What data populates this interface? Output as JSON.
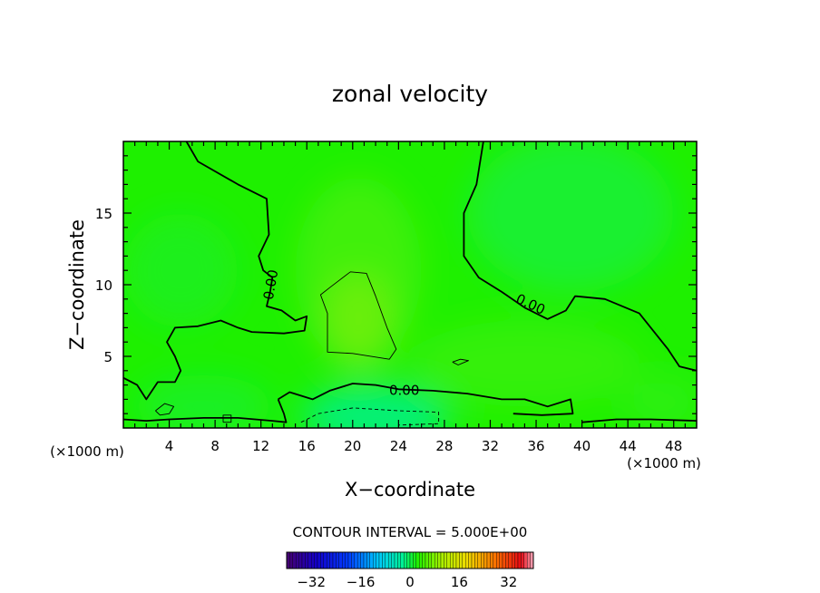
{
  "chart_data": {
    "type": "heatmap",
    "title": "zonal velocity",
    "xlabel": "X−coordinate",
    "ylabel": "Z−coordinate",
    "x_unit_left": "(×1000 m)",
    "x_unit_right": "(×1000 m)",
    "xlim": [
      0,
      50
    ],
    "ylim": [
      0,
      20
    ],
    "x_ticks": [
      4,
      8,
      12,
      16,
      20,
      24,
      28,
      32,
      36,
      40,
      44,
      48
    ],
    "x_tick_labels": [
      "4",
      "8",
      "12",
      "16",
      "20",
      "24",
      "28",
      "32",
      "36",
      "40",
      "44",
      "48"
    ],
    "y_ticks": [
      5,
      10,
      15
    ],
    "y_tick_labels": [
      "5",
      "10",
      "15"
    ],
    "contour_interval_label": "CONTOUR INTERVAL = 5.000E+00",
    "colorbar": {
      "range": [
        -40,
        40
      ],
      "ticks": [
        -32,
        -16,
        0,
        16,
        32
      ],
      "tick_labels": [
        "−32",
        "−16",
        "0",
        "16",
        "32"
      ]
    },
    "contour_labels": [
      {
        "text": "0.00",
        "x": 12.9,
        "z": 10.0,
        "angle": -80
      },
      {
        "text": "0.00",
        "x": 35.5,
        "z": 8.6,
        "angle": 25
      },
      {
        "text": "0.00",
        "x": 24.5,
        "z": 2.6,
        "angle": 0
      }
    ],
    "zero_contours": [
      [
        [
          5.5,
          20.0
        ],
        [
          6.5,
          18.6
        ],
        [
          10.0,
          17.0
        ],
        [
          12.5,
          16.0
        ],
        [
          12.7,
          13.5
        ],
        [
          11.8,
          12.0
        ],
        [
          12.2,
          11.0
        ],
        [
          13.0,
          10.5
        ],
        [
          12.8,
          9.5
        ],
        [
          12.5,
          8.5
        ],
        [
          13.8,
          8.2
        ],
        [
          15.0,
          7.5
        ],
        [
          16.0,
          7.8
        ],
        [
          15.8,
          6.8
        ],
        [
          14.0,
          6.6
        ],
        [
          11.2,
          6.7
        ],
        [
          10.0,
          7.0
        ],
        [
          8.5,
          7.5
        ],
        [
          6.5,
          7.1
        ],
        [
          4.5,
          7.0
        ],
        [
          3.8,
          6.0
        ],
        [
          4.5,
          5.0
        ],
        [
          5.0,
          4.0
        ],
        [
          4.5,
          3.2
        ],
        [
          3.0,
          3.2
        ],
        [
          2.0,
          2.0
        ],
        [
          1.2,
          3.0
        ],
        [
          0,
          3.5
        ]
      ],
      [
        [
          31.4,
          20.0
        ],
        [
          30.8,
          17.0
        ],
        [
          29.7,
          15.0
        ],
        [
          29.7,
          12.0
        ],
        [
          31.0,
          10.5
        ],
        [
          33.0,
          9.5
        ],
        [
          35.0,
          8.4
        ],
        [
          37.0,
          7.6
        ],
        [
          38.6,
          8.2
        ],
        [
          39.4,
          9.2
        ],
        [
          42.0,
          9.0
        ],
        [
          45.0,
          8.0
        ],
        [
          47.5,
          5.5
        ],
        [
          48.5,
          4.3
        ],
        [
          50.0,
          4.0
        ]
      ],
      [
        [
          13.5,
          2.0
        ],
        [
          14.5,
          2.5
        ],
        [
          16.5,
          2.0
        ],
        [
          18.0,
          2.6
        ],
        [
          20.0,
          3.1
        ],
        [
          22.0,
          3.0
        ],
        [
          24.0,
          2.7
        ],
        [
          27.0,
          2.6
        ],
        [
          30.0,
          2.4
        ],
        [
          33.0,
          2.0
        ],
        [
          35.0,
          2.0
        ],
        [
          37.0,
          1.5
        ],
        [
          39.0,
          2.0
        ],
        [
          39.2,
          1.0
        ],
        [
          36.5,
          0.9
        ],
        [
          34.0,
          1.0
        ]
      ],
      [
        [
          13.5,
          2.0
        ],
        [
          14.0,
          1.0
        ],
        [
          14.2,
          0.4
        ],
        [
          13.0,
          0.5
        ],
        [
          10.0,
          0.7
        ],
        [
          7.0,
          0.7
        ],
        [
          4.0,
          0.6
        ],
        [
          2.0,
          0.5
        ],
        [
          0,
          0.6
        ]
      ],
      [
        [
          40.0,
          0.4
        ],
        [
          43.0,
          0.6
        ],
        [
          46.0,
          0.6
        ],
        [
          50.0,
          0.5
        ]
      ]
    ],
    "positive_contours": [
      [
        [
          18.0,
          9.8
        ],
        [
          19.8,
          10.9
        ],
        [
          21.2,
          10.8
        ],
        [
          22.0,
          9.2
        ],
        [
          23.0,
          7.0
        ],
        [
          23.8,
          5.5
        ],
        [
          23.2,
          4.8
        ],
        [
          20.0,
          5.2
        ],
        [
          17.8,
          5.3
        ],
        [
          17.8,
          8.0
        ],
        [
          17.2,
          9.3
        ],
        [
          18.0,
          9.8
        ]
      ]
    ],
    "negative_contours": [
      [
        [
          15.5,
          0.4
        ],
        [
          17.0,
          1.0
        ],
        [
          20.0,
          1.4
        ],
        [
          24.0,
          1.2
        ],
        [
          27.5,
          1.1
        ],
        [
          27.5,
          0.3
        ],
        [
          24.0,
          0.2
        ]
      ]
    ],
    "small_closed_contours": [
      [
        [
          2.8,
          1.2
        ],
        [
          3.6,
          1.7
        ],
        [
          4.4,
          1.5
        ],
        [
          4.0,
          1.0
        ],
        [
          3.2,
          0.9
        ],
        [
          2.8,
          1.2
        ]
      ],
      [
        [
          28.7,
          4.6
        ],
        [
          29.4,
          4.8
        ],
        [
          30.1,
          4.7
        ],
        [
          29.2,
          4.4
        ],
        [
          28.7,
          4.6
        ]
      ],
      [
        [
          8.7,
          0.4
        ],
        [
          9.4,
          0.4
        ],
        [
          9.4,
          0.9
        ],
        [
          8.7,
          0.9
        ],
        [
          8.7,
          0.4
        ]
      ]
    ],
    "field_base_color": "#1ef000",
    "field_blobs": [
      {
        "x": 20.5,
        "z": 11.0,
        "rx": 5.5,
        "rz": 6.5,
        "color": "#5cf010",
        "opacity": 0.55
      },
      {
        "x": 20.5,
        "z": 7.5,
        "rx": 3.2,
        "rz": 3.5,
        "color": "#7af012",
        "opacity": 0.7
      },
      {
        "x": 39.0,
        "z": 15.0,
        "rx": 9.0,
        "rz": 5.5,
        "color": "#10f060",
        "opacity": 0.5
      },
      {
        "x": 5.0,
        "z": 11.0,
        "rx": 5.0,
        "rz": 4.0,
        "color": "#10ee50",
        "opacity": 0.35
      },
      {
        "x": 22.0,
        "z": 0.8,
        "rx": 6.5,
        "rz": 2.2,
        "color": "#00f08c",
        "opacity": 0.85
      },
      {
        "x": 35.0,
        "z": 4.5,
        "rx": 10.0,
        "rz": 3.0,
        "color": "#4cf018",
        "opacity": 0.5
      },
      {
        "x": 47.0,
        "z": 1.8,
        "rx": 3.5,
        "rz": 2.2,
        "color": "#3cf020",
        "opacity": 0.45
      },
      {
        "x": 7.0,
        "z": 1.5,
        "rx": 6.0,
        "rz": 2.2,
        "color": "#10f048",
        "opacity": 0.5
      }
    ]
  }
}
